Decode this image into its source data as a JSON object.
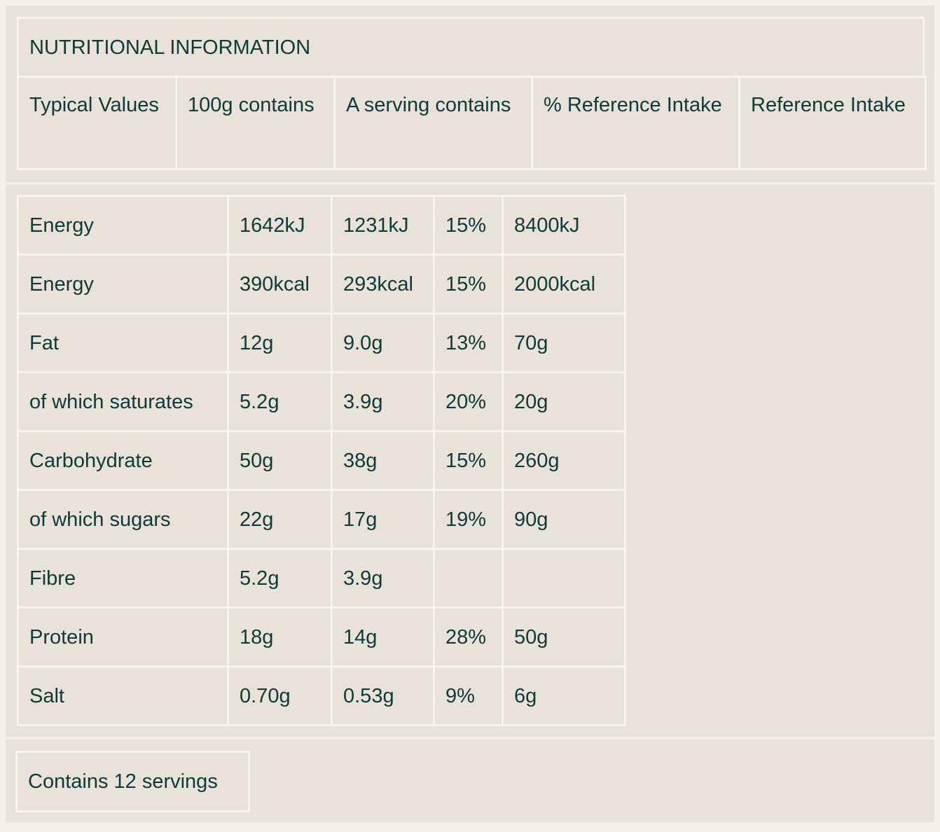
{
  "title": "NUTRITIONAL INFORMATION",
  "headers": [
    "Typical Values",
    "100g contains",
    "A serving contains",
    "% Reference Intake",
    "Reference Intake"
  ],
  "rows": [
    [
      "Energy",
      "1642kJ",
      "1231kJ",
      "15%",
      "8400kJ"
    ],
    [
      "Energy",
      "390kcal",
      "293kcal",
      "15%",
      "2000kcal"
    ],
    [
      "Fat",
      "12g",
      "9.0g",
      "13%",
      "70g"
    ],
    [
      "of which saturates",
      "5.2g",
      "3.9g",
      "20%",
      "20g"
    ],
    [
      "Carbohydrate",
      "50g",
      "38g",
      "15%",
      "260g"
    ],
    [
      "of which sugars",
      "22g",
      "17g",
      "19%",
      "90g"
    ],
    [
      "Fibre",
      "5.2g",
      "3.9g"
    ],
    [
      "Protein",
      "18g",
      "14g",
      "28%",
      "50g"
    ],
    [
      "Salt",
      "0.70g",
      "0.53g",
      "9%",
      "6g"
    ]
  ],
  "footer": "Contains 12 servings"
}
